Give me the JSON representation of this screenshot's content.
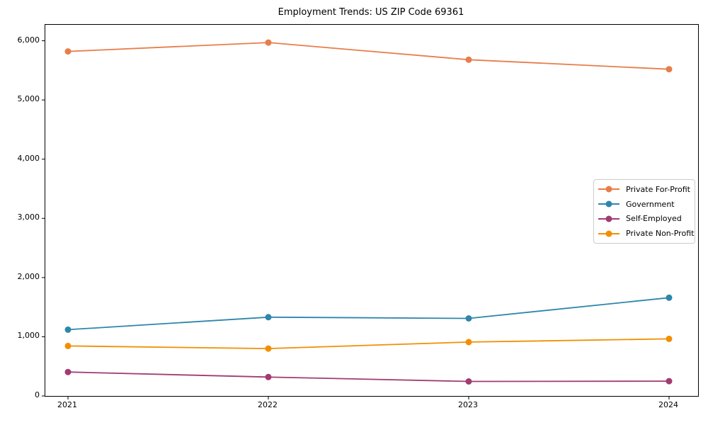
{
  "title": "Employment Trends: US ZIP Code 69361",
  "chart_data": {
    "type": "line",
    "title": "Employment Trends: US ZIP Code 69361",
    "categories": [
      "2021",
      "2022",
      "2023",
      "2024"
    ],
    "series": [
      {
        "name": "Private For-Profit",
        "color": "#E87D4A",
        "values": [
          5820,
          5970,
          5680,
          5520
        ]
      },
      {
        "name": "Government",
        "color": "#2E86AB",
        "values": [
          1120,
          1330,
          1310,
          1660
        ]
      },
      {
        "name": "Self-Employed",
        "color": "#A23B72",
        "values": [
          405,
          320,
          245,
          250
        ]
      },
      {
        "name": "Private Non-Profit",
        "color": "#F18F01",
        "values": [
          845,
          800,
          910,
          965
        ]
      }
    ],
    "xlabel": "",
    "ylabel": "",
    "ylim": [
      0,
      6270
    ],
    "yticks": [
      0,
      1000,
      2000,
      3000,
      4000,
      5000,
      6000
    ],
    "ytick_labels": [
      "0",
      "1,000",
      "2,000",
      "3,000",
      "4,000",
      "5,000",
      "6,000"
    ],
    "grid": false,
    "legend_position": "center right",
    "marker": "circle"
  }
}
